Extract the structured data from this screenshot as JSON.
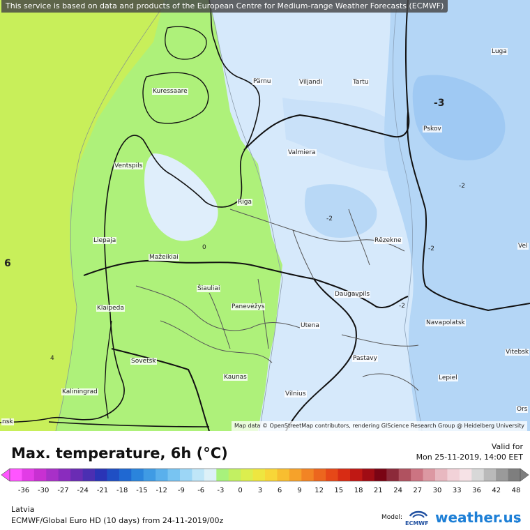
{
  "notice": "This service is based on data and products of the European Centre for Medium-range Weather Forecasts (ECMWF)",
  "attribution": "Map data © OpenStreetMap contributors, rendering GIScience Research Group @ Heidelberg University",
  "cities": [
    {
      "name": "Luga"
    },
    {
      "name": "Pärnu"
    },
    {
      "name": "Viljandi"
    },
    {
      "name": "Tartu"
    },
    {
      "name": "Kuressaare"
    },
    {
      "name": "Pskov"
    },
    {
      "name": "Valmiera"
    },
    {
      "name": "Ventspils"
    },
    {
      "name": "Riga"
    },
    {
      "name": "Liepaja"
    },
    {
      "name": "Rēzekne"
    },
    {
      "name": "Mažeikiai"
    },
    {
      "name": "Šiauliai"
    },
    {
      "name": "Klaipeda"
    },
    {
      "name": "Panevėžys"
    },
    {
      "name": "Daugavpils"
    },
    {
      "name": "Utena"
    },
    {
      "name": "Navapolatsk"
    },
    {
      "name": "Sovetsk"
    },
    {
      "name": "Pastavy"
    },
    {
      "name": "Vitebsk"
    },
    {
      "name": "Kaunas"
    },
    {
      "name": "Lepiel"
    },
    {
      "name": "Kaliningrad"
    },
    {
      "name": "Vilnius"
    },
    {
      "name": "Vel"
    },
    {
      "name": "Ors"
    },
    {
      "name": "nsk"
    }
  ],
  "isotherm_labels": [
    "-3",
    "-2",
    "-2",
    "-2",
    "-2",
    "0",
    "4",
    "6"
  ],
  "legend": {
    "title": "Max. temperature, 6h (°C)",
    "valid_label": "Valid for",
    "valid_date": "Mon 25-11-2019, 14:00 EET",
    "ticks": [
      "-36",
      "-30",
      "-27",
      "-24",
      "-21",
      "-18",
      "-15",
      "-12",
      "-9",
      "-6",
      "-3",
      "0",
      "3",
      "6",
      "9",
      "12",
      "15",
      "18",
      "21",
      "24",
      "27",
      "30",
      "33",
      "36",
      "42",
      "48"
    ],
    "colors": [
      "#ff55ff",
      "#e23ce6",
      "#c830d2",
      "#a830c8",
      "#8a2cbe",
      "#6a2cb4",
      "#4b2fb2",
      "#2a34b6",
      "#1f4fc4",
      "#1f68d2",
      "#2a84dc",
      "#3f9be4",
      "#5ab0ec",
      "#78c4f2",
      "#9cd6f6",
      "#bfe6f8",
      "#ddf1f8",
      "#a8f27c",
      "#c2f062",
      "#dcee4e",
      "#eee640",
      "#f8d638",
      "#f8be30",
      "#f6a22a",
      "#f28424",
      "#ec661e",
      "#e64818",
      "#d82c14",
      "#c01814",
      "#a00c14",
      "#7a0414",
      "#8c2a3a",
      "#b05260",
      "#cc7482",
      "#dc98a2",
      "#e8b8c0",
      "#f2d2d8",
      "#f6e2e6",
      "#d8d8d8",
      "#bababa",
      "#9a9a9a",
      "#7e7e7e"
    ]
  },
  "region": "Latvia",
  "model_line": "ECMWF/Global Euro HD (10 days) from 24-11-2019/00z",
  "model_label": "Model:",
  "ecmwf_logo_text": "ECMWF",
  "brand": "weather.us",
  "brand_sup": "©"
}
